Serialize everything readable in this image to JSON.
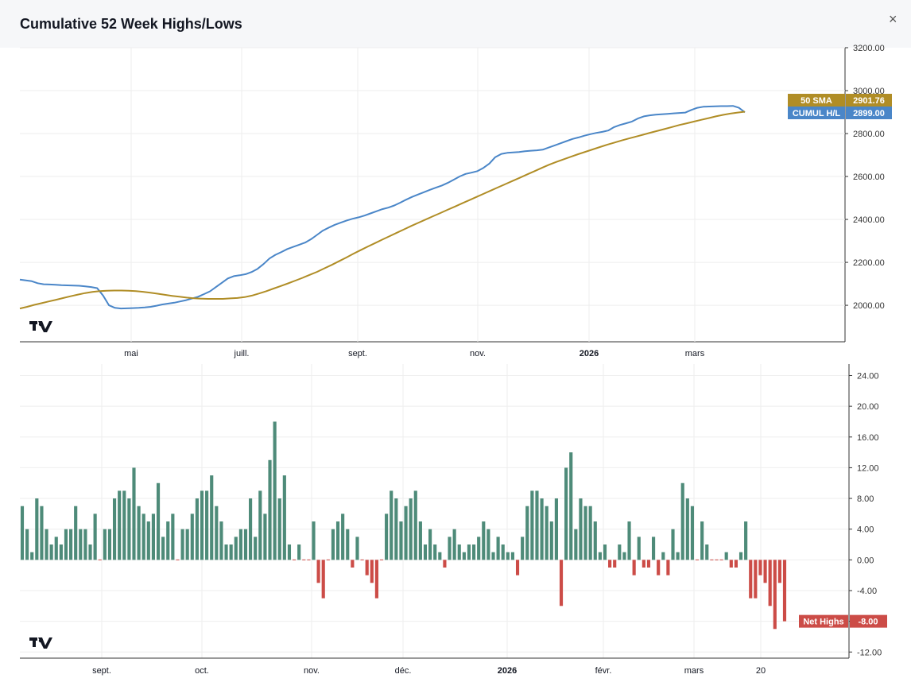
{
  "header": {
    "title": "Cumulative 52 Week Highs/Lows",
    "close_glyph": "×"
  },
  "chart_data": [
    {
      "type": "line",
      "title": "Cumulative 52 Week Highs/Lows",
      "ylim": [
        1830,
        3200
      ],
      "y_ticks": [
        "3200.00",
        "3000.00",
        "2800.00",
        "2600.00",
        "2400.00",
        "2200.00",
        "2000.00"
      ],
      "x_tick_labels": [
        "mai",
        "juill.",
        "sept.",
        "nov.",
        "2026",
        "mars"
      ],
      "grid": true,
      "series": [
        {
          "name": "CUMUL H/L",
          "color": "#4a86c8",
          "value_label": "2899.00",
          "values": [
            2120,
            2116,
            2112,
            2103,
            2098,
            2097,
            2096,
            2094,
            2093,
            2092,
            2091,
            2088,
            2085,
            2080,
            2045,
            2000,
            1988,
            1985,
            1986,
            1987,
            1988,
            1990,
            1993,
            1998,
            2004,
            2008,
            2012,
            2018,
            2024,
            2032,
            2040,
            2052,
            2065,
            2085,
            2105,
            2125,
            2136,
            2140,
            2145,
            2155,
            2170,
            2192,
            2218,
            2235,
            2248,
            2262,
            2272,
            2282,
            2292,
            2308,
            2328,
            2348,
            2362,
            2375,
            2385,
            2395,
            2403,
            2410,
            2418,
            2428,
            2438,
            2448,
            2455,
            2465,
            2478,
            2492,
            2505,
            2516,
            2527,
            2538,
            2548,
            2558,
            2570,
            2585,
            2600,
            2612,
            2618,
            2625,
            2640,
            2660,
            2690,
            2705,
            2710,
            2712,
            2714,
            2718,
            2720,
            2722,
            2725,
            2735,
            2745,
            2755,
            2765,
            2775,
            2782,
            2790,
            2797,
            2803,
            2808,
            2814,
            2830,
            2840,
            2848,
            2856,
            2870,
            2880,
            2885,
            2888,
            2890,
            2892,
            2894,
            2896,
            2898,
            2910,
            2920,
            2925,
            2926,
            2927,
            2928,
            2928,
            2929,
            2920,
            2899
          ]
        },
        {
          "name": "50 SMA",
          "color": "#b08d26",
          "value_label": "2901.76",
          "values": [
            1985,
            1993,
            2002,
            2010,
            2018,
            2026,
            2034,
            2042,
            2050,
            2057,
            2062,
            2066,
            2068,
            2069,
            2069,
            2068,
            2066,
            2063,
            2059,
            2054,
            2049,
            2044,
            2040,
            2036,
            2033,
            2031,
            2030,
            2030,
            2030,
            2032,
            2034,
            2038,
            2045,
            2055,
            2066,
            2078,
            2090,
            2102,
            2115,
            2128,
            2142,
            2156,
            2172,
            2188,
            2205,
            2222,
            2240,
            2257,
            2274,
            2290,
            2306,
            2322,
            2338,
            2354,
            2370,
            2385,
            2400,
            2415,
            2430,
            2445,
            2460,
            2475,
            2490,
            2505,
            2520,
            2535,
            2550,
            2565,
            2580,
            2595,
            2610,
            2625,
            2640,
            2655,
            2668,
            2680,
            2692,
            2704,
            2715,
            2726,
            2737,
            2748,
            2758,
            2768,
            2777,
            2786,
            2795,
            2804,
            2813,
            2822,
            2831,
            2840,
            2848,
            2856,
            2864,
            2872,
            2880,
            2887,
            2893,
            2898,
            2901.76
          ]
        }
      ]
    },
    {
      "type": "bar",
      "ylim": [
        -12.8,
        25.5
      ],
      "y_ticks": [
        "24.00",
        "20.00",
        "16.00",
        "12.00",
        "8.00",
        "4.00",
        "0.00",
        "-4.00",
        "-8.00",
        "-12.00"
      ],
      "x_tick_labels": [
        "sept.",
        "oct.",
        "nov.",
        "déc.",
        "2026",
        "févr.",
        "mars",
        "20"
      ],
      "grid": true,
      "colors": {
        "positive": "#4e8b79",
        "negative": "#cc4c47"
      },
      "series": [
        {
          "name": "Net Highs",
          "value_label": "-8.00",
          "values": [
            7,
            4,
            1,
            8,
            7,
            4,
            2,
            3,
            2,
            4,
            4,
            7,
            4,
            4,
            2,
            6,
            0,
            4,
            4,
            8,
            9,
            9,
            8,
            12,
            7,
            6,
            5,
            6,
            10,
            3,
            5,
            6,
            0,
            4,
            4,
            6,
            8,
            9,
            9,
            11,
            7,
            5,
            2,
            2,
            3,
            4,
            4,
            8,
            3,
            9,
            6,
            13,
            18,
            8,
            11,
            2,
            0,
            2,
            0,
            0,
            5,
            -3,
            -5,
            0,
            4,
            5,
            6,
            4,
            -1,
            3,
            0,
            -2,
            -3,
            -5,
            0,
            6,
            9,
            8,
            5,
            7,
            8,
            9,
            5,
            2,
            4,
            2,
            1,
            -1,
            3,
            4,
            2,
            1,
            2,
            2,
            3,
            5,
            4,
            1,
            3,
            2,
            1,
            1,
            -2,
            3,
            7,
            9,
            9,
            8,
            7,
            5,
            8,
            -6,
            12,
            14,
            4,
            8,
            7,
            7,
            5,
            1,
            2,
            -1,
            -1,
            2,
            1,
            5,
            -2,
            3,
            -1,
            -1,
            3,
            -2,
            1,
            -2,
            4,
            1,
            10,
            8,
            7,
            0,
            5,
            2,
            0,
            0,
            0,
            1,
            -1,
            -1,
            1,
            5,
            -5,
            -5,
            -2,
            -3,
            -6,
            -9,
            -3,
            -8
          ]
        }
      ]
    }
  ]
}
